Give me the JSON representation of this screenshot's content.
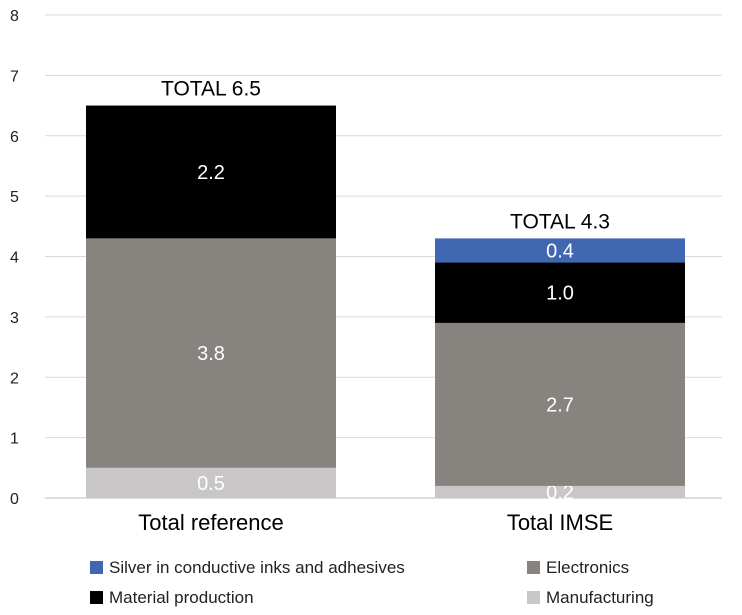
{
  "chart_data": {
    "type": "bar",
    "stacked": true,
    "categories": [
      "Total reference",
      "Total IMSE"
    ],
    "series": [
      {
        "name": "Manufacturing",
        "color": "#c9c6c7",
        "values": [
          0.5,
          0.2
        ],
        "labels": [
          "0.5",
          "0.2"
        ]
      },
      {
        "name": "Electronics",
        "color": "#87847f",
        "values": [
          3.8,
          2.7
        ],
        "labels": [
          "3.8",
          "2.7"
        ]
      },
      {
        "name": "Material production",
        "color": "#000000",
        "values": [
          2.2,
          1.0
        ],
        "labels": [
          "2.2",
          "1.0"
        ]
      },
      {
        "name": "Silver in conductive inks and adhesives",
        "color": "#4068b2",
        "values": [
          0,
          0.4
        ],
        "labels": [
          "",
          "0.4"
        ]
      }
    ],
    "totals": [
      "TOTAL 6.5",
      "TOTAL 4.3"
    ],
    "ylim": [
      0,
      8
    ],
    "yticks": [
      "0",
      "1",
      "2",
      "3",
      "4",
      "5",
      "6",
      "7",
      "8"
    ],
    "grid": true,
    "legend_position": "bottom",
    "legend_order": [
      "Silver in conductive inks and adhesives",
      "Electronics",
      "Material production",
      "Manufacturing"
    ]
  }
}
